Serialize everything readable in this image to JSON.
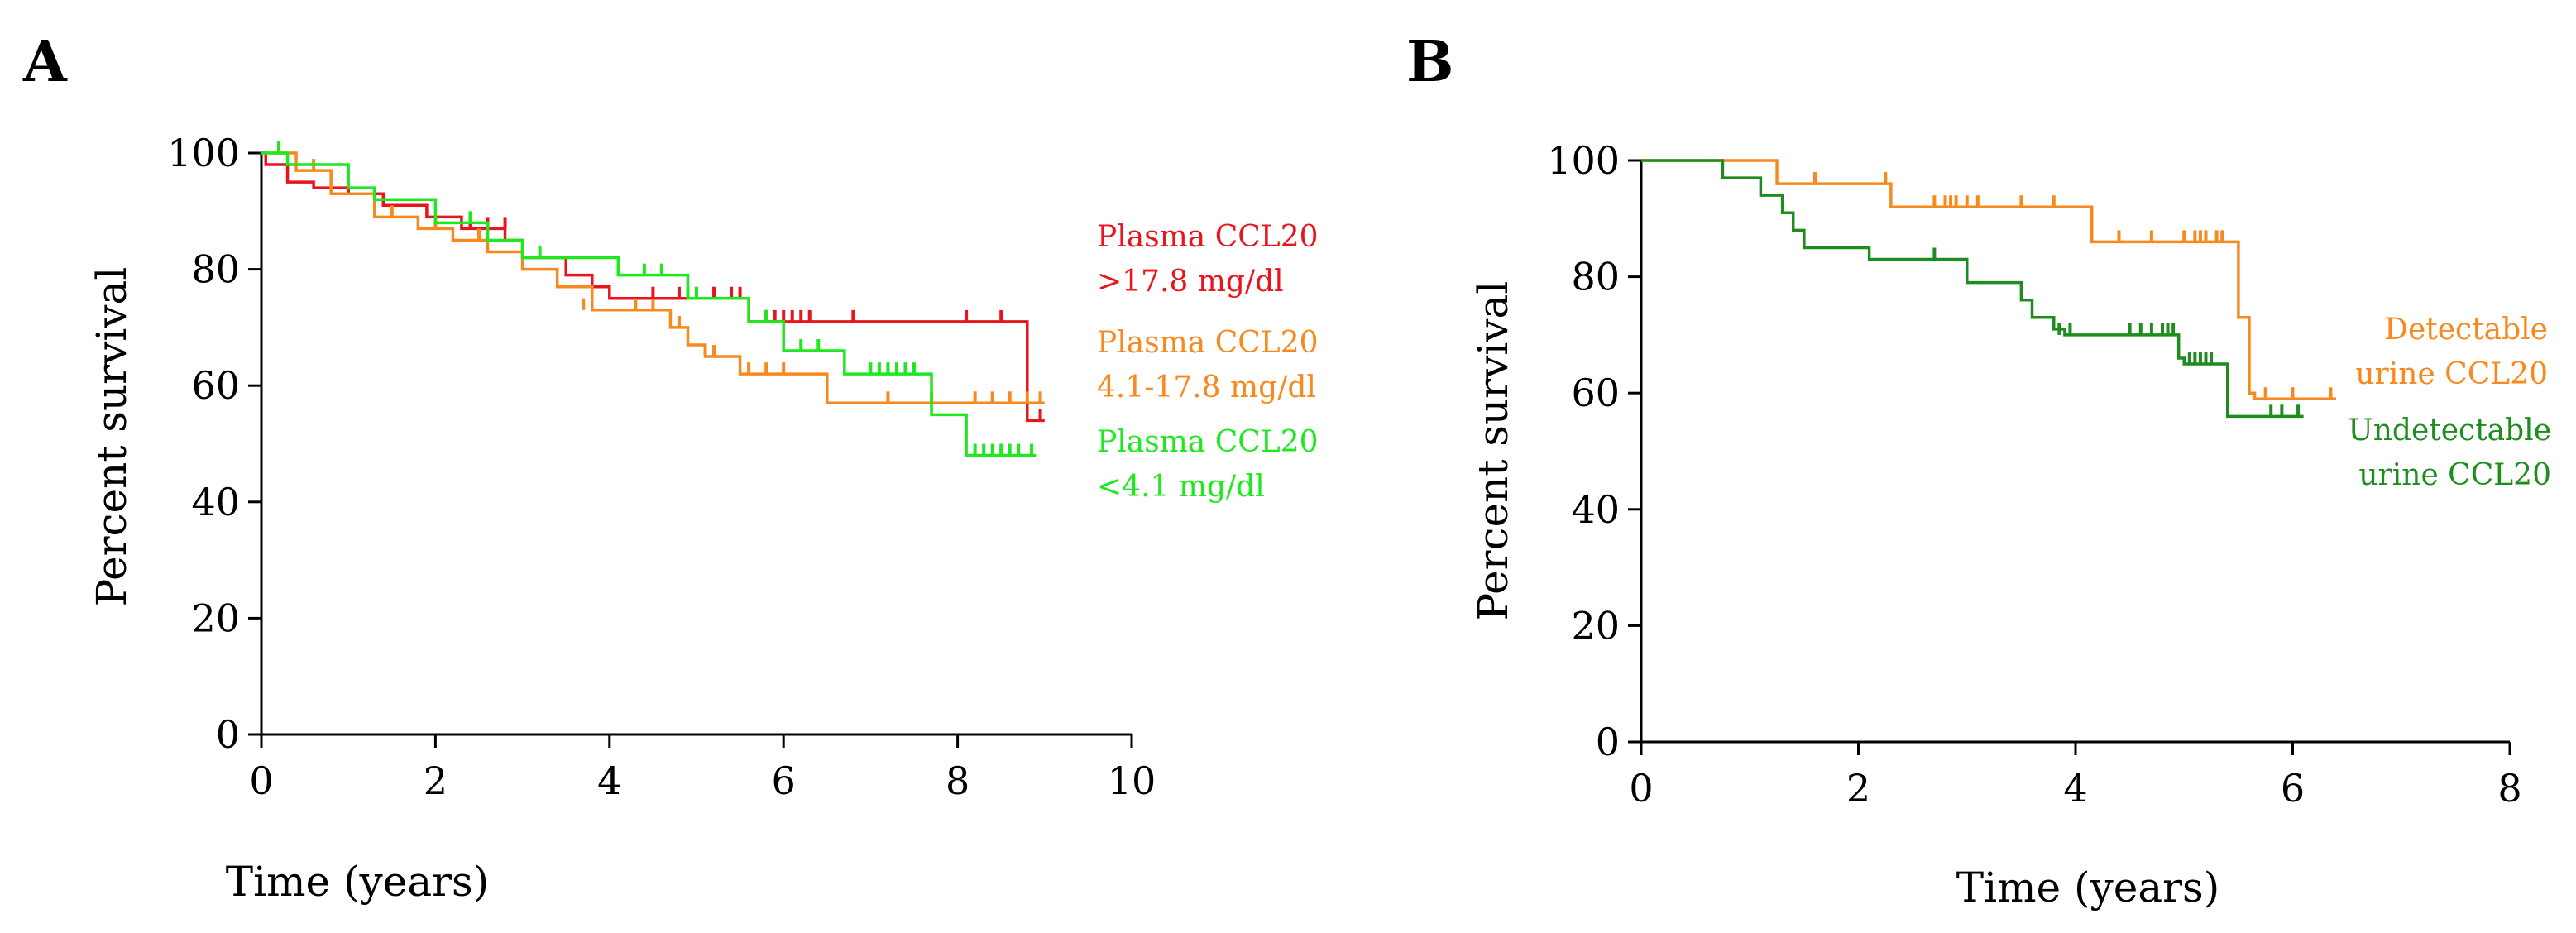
{
  "chart_data": [
    {
      "id": "A",
      "type": "line",
      "panel_label": "A",
      "xlabel": "Time (years)",
      "ylabel": "Percent survival",
      "xlim": [
        0,
        10
      ],
      "ylim": [
        0,
        100
      ],
      "xticks": [
        "0",
        "2",
        "4",
        "6",
        "8",
        "10"
      ],
      "yticks": [
        "0",
        "20",
        "40",
        "60",
        "80",
        "100"
      ],
      "legend": [
        {
          "line1": "Plasma CCL20",
          "line2": ">17.8 mg/dl",
          "color": "#e8141e"
        },
        {
          "line1": "Plasma CCL20",
          "line2": "4.1-17.8 mg/dl",
          "color": "#f7891f"
        },
        {
          "line1": "Plasma CCL20",
          "line2": "<4.1 mg/dl",
          "color": "#1ee81e"
        }
      ],
      "series": [
        {
          "name": "Plasma CCL20 >17.8 mg/dl",
          "color": "#e8141e",
          "x": [
            0,
            0.05,
            0.3,
            0.6,
            1.0,
            1.4,
            1.9,
            2.3,
            2.8,
            3.0,
            3.5,
            3.8,
            4.0,
            5.6,
            8.8,
            9.0
          ],
          "y": [
            100,
            98,
            95,
            94,
            93,
            91,
            89,
            87,
            85,
            82,
            79,
            77,
            75,
            71,
            54,
            54
          ],
          "censor_x": [
            2.4,
            2.6,
            2.8,
            4.5,
            4.8,
            5.2,
            5.4,
            5.5,
            5.8,
            5.9,
            6.0,
            6.1,
            6.2,
            6.3,
            6.8,
            8.1,
            8.5,
            8.95
          ],
          "censor_y": [
            87,
            87,
            87,
            75,
            75,
            75,
            75,
            75,
            71,
            71,
            71,
            71,
            71,
            71,
            71,
            71,
            71,
            54
          ]
        },
        {
          "name": "Plasma CCL20 4.1-17.8 mg/dl",
          "color": "#f7891f",
          "x": [
            0,
            0.4,
            0.8,
            1.3,
            1.8,
            2.2,
            2.6,
            3.0,
            3.4,
            3.8,
            4.7,
            4.9,
            5.1,
            5.5,
            6.5,
            9.0
          ],
          "y": [
            100,
            97,
            93,
            89,
            87,
            85,
            83,
            80,
            77,
            73,
            70,
            67,
            65,
            62,
            57,
            57
          ],
          "censor_x": [
            0.6,
            1.5,
            2.0,
            2.5,
            3.7,
            4.3,
            4.5,
            4.8,
            5.1,
            5.2,
            5.6,
            5.8,
            6.0,
            7.2,
            7.7,
            8.2,
            8.4,
            8.6,
            8.8,
            8.95
          ],
          "censor_y": [
            97,
            89,
            87,
            85,
            73,
            73,
            73,
            70,
            65,
            65,
            62,
            62,
            62,
            57,
            57,
            57,
            57,
            57,
            57,
            57
          ]
        },
        {
          "name": "Plasma CCL20 <4.1 mg/dl",
          "color": "#1ee81e",
          "x": [
            0,
            0.3,
            1.0,
            1.3,
            2.0,
            2.6,
            3.0,
            3.6,
            4.1,
            4.9,
            5.6,
            6.0,
            6.7,
            7.7,
            8.1,
            8.9
          ],
          "y": [
            100,
            98,
            94,
            92,
            88,
            85,
            82,
            82,
            79,
            75,
            71,
            66,
            62,
            55,
            48,
            48
          ],
          "censor_x": [
            0.2,
            2.4,
            3.2,
            4.4,
            4.6,
            4.9,
            5.0,
            5.8,
            6.2,
            6.4,
            7.0,
            7.1,
            7.2,
            7.3,
            7.4,
            7.5,
            8.2,
            8.3,
            8.4,
            8.5,
            8.6,
            8.7,
            8.85
          ],
          "censor_y": [
            100,
            88,
            82,
            79,
            79,
            75,
            75,
            71,
            66,
            66,
            62,
            62,
            62,
            62,
            62,
            62,
            48,
            48,
            48,
            48,
            48,
            48,
            48
          ]
        }
      ]
    },
    {
      "id": "B",
      "type": "line",
      "panel_label": "B",
      "xlabel": "Time (years)",
      "ylabel": "Percent survival",
      "xlim": [
        0,
        8
      ],
      "ylim": [
        0,
        100
      ],
      "xticks": [
        "0",
        "2",
        "4",
        "6",
        "8"
      ],
      "yticks": [
        "0",
        "20",
        "40",
        "60",
        "80",
        "100"
      ],
      "legend": [
        {
          "line1": "Detectable",
          "line2": "urine CCL20",
          "color": "#f7891f"
        },
        {
          "line1": "Undetectable",
          "line2": "urine CCL20",
          "color": "#1e8c1e"
        }
      ],
      "series": [
        {
          "name": "Detectable urine CCL20",
          "color": "#f7891f",
          "x": [
            0,
            1.25,
            2.3,
            4.15,
            5.5,
            5.6,
            5.65,
            6.4
          ],
          "y": [
            100,
            96,
            92,
            86,
            73,
            60,
            59,
            59
          ],
          "censor_x": [
            1.6,
            2.25,
            2.7,
            2.8,
            2.85,
            2.9,
            3.0,
            3.1,
            3.5,
            3.8,
            4.4,
            4.7,
            5.0,
            5.1,
            5.15,
            5.2,
            5.3,
            5.35,
            5.75,
            6.0,
            6.35
          ],
          "censor_y": [
            96,
            96,
            92,
            92,
            92,
            92,
            92,
            92,
            92,
            92,
            86,
            86,
            86,
            86,
            86,
            86,
            86,
            86,
            59,
            59,
            59
          ]
        },
        {
          "name": "Undetectable urine CCL20",
          "color": "#1e8c1e",
          "x": [
            0,
            0.75,
            1.1,
            1.3,
            1.4,
            1.5,
            2.1,
            3.0,
            3.5,
            3.6,
            3.8,
            3.9,
            4.95,
            5.0,
            5.4,
            6.1
          ],
          "y": [
            100,
            97,
            94,
            91,
            88,
            85,
            83,
            79,
            76,
            73,
            71,
            70,
            66,
            65,
            56,
            56
          ],
          "censor_x": [
            2.7,
            3.85,
            3.95,
            4.5,
            4.6,
            4.7,
            4.8,
            4.85,
            4.9,
            5.05,
            5.1,
            5.15,
            5.2,
            5.25,
            5.8,
            5.9,
            6.05
          ],
          "censor_y": [
            83,
            70,
            70,
            70,
            70,
            70,
            70,
            70,
            70,
            65,
            65,
            65,
            65,
            65,
            56,
            56,
            56
          ]
        }
      ]
    }
  ]
}
